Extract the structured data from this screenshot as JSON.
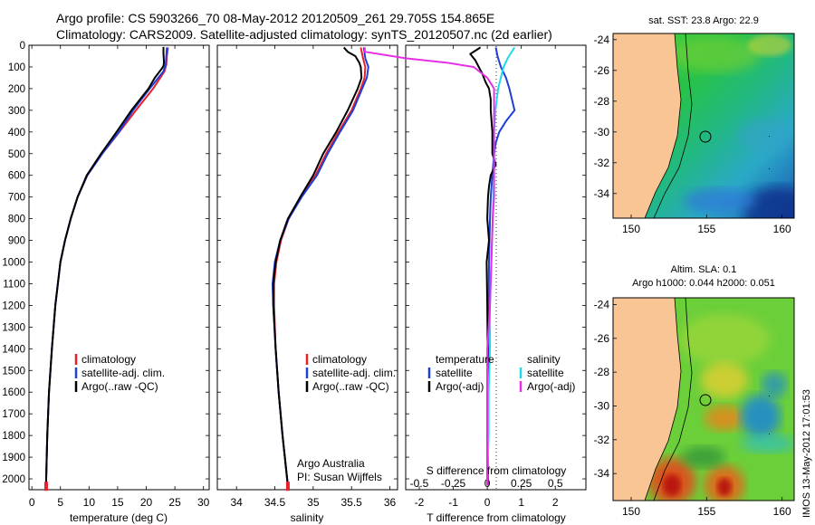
{
  "title_line1": "Argo profile: CS 5903266_70 08-May-2012 20120509_261 29.705S 154.865E",
  "title_line2": "Climatology: CARS2009. Satellite-adjusted climatology: synTS_20120507.nc (2d earlier)",
  "timestamp": "IMOS 13-May-2012 17:01:53",
  "chart_data": [
    {
      "type": "line",
      "xlabel": "temperature (deg C)",
      "xlim": [
        -0.5,
        31
      ],
      "xticks": [
        0,
        5,
        10,
        15,
        20,
        25,
        30
      ],
      "ylim": [
        2050,
        0
      ],
      "yticks": [
        0,
        100,
        200,
        300,
        400,
        500,
        600,
        700,
        800,
        900,
        1000,
        1100,
        1200,
        1300,
        1400,
        1500,
        1600,
        1700,
        1800,
        1900,
        2000
      ],
      "legend": [
        "climatology",
        "satellite-adj. clim.",
        "Argo(..raw -QC)"
      ],
      "colors": {
        "climatology": "#e8202a",
        "satellite": "#1e3fd8",
        "argo": "#000000"
      },
      "series": [
        {
          "name": "climatology",
          "color": "#e8202a",
          "y": [
            10,
            50,
            90,
            120,
            200,
            300,
            400,
            500,
            600,
            700,
            800,
            900,
            1000,
            1200,
            1400,
            1600,
            1800,
            2000,
            2030
          ],
          "x": [
            23.8,
            23.6,
            23.5,
            23.2,
            21.2,
            18.2,
            15.3,
            12.3,
            9.7,
            8.0,
            6.8,
            5.8,
            5.0,
            4.1,
            3.5,
            3.0,
            2.7,
            2.5,
            2.5
          ]
        },
        {
          "name": "satellite-adj. clim.",
          "color": "#1e3fd8",
          "y": [
            10,
            50,
            90,
            120,
            200,
            300,
            400,
            500,
            600,
            700,
            800,
            900,
            1000,
            1200,
            1400,
            1600,
            1800,
            2000,
            2030
          ],
          "x": [
            23.6,
            23.5,
            23.4,
            23.0,
            20.6,
            17.7,
            15.2,
            12.3,
            9.7,
            8.0,
            6.8,
            5.8,
            5.0,
            4.1,
            3.5,
            3.0,
            2.7,
            2.5,
            2.5
          ]
        },
        {
          "name": "Argo(..raw -QC)",
          "color": "#000000",
          "y": [
            8,
            40,
            80,
            95,
            105,
            150,
            200,
            300,
            400,
            500,
            600,
            700,
            800,
            900,
            1000,
            1200,
            1400,
            1600,
            1800,
            2000,
            2030
          ],
          "x": [
            23.0,
            23.0,
            23.1,
            23.0,
            22.8,
            21.5,
            20.4,
            17.4,
            14.8,
            12.1,
            9.6,
            8.0,
            6.8,
            5.8,
            5.0,
            4.1,
            3.5,
            3.0,
            2.7,
            2.5,
            2.5
          ]
        }
      ],
      "marker_bottom": {
        "x": 2.5,
        "y": 2030,
        "color": "#e8202a"
      }
    },
    {
      "type": "line",
      "xlabel": "salinity",
      "xlim": [
        33.75,
        36.1
      ],
      "xticks": [
        34,
        34.5,
        35,
        35.5,
        36
      ],
      "ylim": [
        2050,
        0
      ],
      "legend": [
        "climatology",
        "satellite-adj. clim.",
        "Argo(..raw -QC)"
      ],
      "annotation": [
        "Argo Australia",
        "PI: Susan Wijffels"
      ],
      "series": [
        {
          "name": "climatology",
          "color": "#e8202a",
          "y": [
            10,
            60,
            100,
            150,
            200,
            300,
            400,
            500,
            600,
            700,
            800,
            900,
            1000,
            1100,
            1200,
            1400,
            1600,
            1800,
            2000,
            2030
          ],
          "x": [
            35.62,
            35.65,
            35.68,
            35.67,
            35.62,
            35.5,
            35.33,
            35.17,
            35.03,
            34.84,
            34.68,
            34.58,
            34.52,
            34.49,
            34.49,
            34.51,
            34.55,
            34.6,
            34.66,
            34.67
          ]
        },
        {
          "name": "satellite-adj. clim.",
          "color": "#1e3fd8",
          "y": [
            10,
            60,
            100,
            150,
            200,
            300,
            400,
            500,
            600,
            700,
            800,
            900,
            1000,
            1100,
            1200,
            1400,
            1600,
            1800,
            2000,
            2030
          ],
          "x": [
            35.66,
            35.68,
            35.72,
            35.7,
            35.64,
            35.52,
            35.35,
            35.19,
            35.05,
            34.85,
            34.68,
            34.57,
            34.5,
            34.47,
            34.48,
            34.51,
            34.55,
            34.6,
            34.66,
            34.67
          ]
        },
        {
          "name": "Argo(..raw -QC)",
          "color": "#000000",
          "y": [
            10,
            30,
            50,
            80,
            100,
            150,
            200,
            300,
            400,
            500,
            600,
            700,
            800,
            900,
            1000,
            1100,
            1200,
            1400,
            1600,
            1800,
            2000,
            2030
          ],
          "x": [
            35.4,
            35.45,
            35.55,
            35.6,
            35.62,
            35.63,
            35.58,
            35.45,
            35.3,
            35.13,
            35.0,
            34.83,
            34.67,
            34.57,
            34.51,
            34.48,
            34.48,
            34.51,
            34.55,
            34.6,
            34.66,
            34.67
          ]
        }
      ],
      "marker_bottom": {
        "x": 34.67,
        "y": 2030,
        "color": "#e8202a"
      }
    },
    {
      "type": "line",
      "xlabel": "T difference from climatology",
      "xlabel2": "S difference from climatology",
      "xlim": [
        -2.4,
        2.9
      ],
      "xticks": [
        -2,
        -1,
        0,
        1,
        2
      ],
      "xticks2": [
        "-0.5",
        "-0.25",
        "0",
        "0.25",
        "0.5"
      ],
      "ylim": [
        2050,
        0
      ],
      "legend_temperature": {
        "header": "temperature",
        "items": [
          "satellite",
          "Argo(-adj)"
        ]
      },
      "legend_salinity": {
        "header": "salinity",
        "items": [
          "satellite",
          "Argo(-adj)"
        ]
      },
      "series": [
        {
          "name": "temperature satellite",
          "color": "#1e3fd8",
          "y": [
            10,
            50,
            100,
            150,
            200,
            300,
            350,
            400,
            450,
            500,
            600,
            700,
            800,
            1000,
            1200,
            1400,
            1600,
            1800,
            2000,
            2030
          ],
          "x": [
            0.25,
            0.3,
            0.4,
            0.55,
            0.65,
            0.8,
            0.55,
            0.35,
            0.25,
            0.2,
            0.15,
            0.1,
            0.08,
            0.05,
            0.04,
            0.03,
            0.02,
            0.02,
            0.02,
            0.02
          ]
        },
        {
          "name": "temperature Argo(-adj)",
          "color": "#000000",
          "y": [
            10,
            40,
            70,
            100,
            130,
            170,
            200,
            250,
            300,
            400,
            500,
            550,
            600,
            650,
            700,
            800,
            900,
            1000,
            1200,
            1400,
            1600,
            1800,
            2000,
            2030
          ],
          "x": [
            -0.2,
            -0.5,
            -0.35,
            -0.25,
            -0.15,
            -0.05,
            0.05,
            0.1,
            0.1,
            0.15,
            0.15,
            0.25,
            0.1,
            0.05,
            0.02,
            0.0,
            0.05,
            -0.02,
            0.0,
            0.01,
            0.0,
            0.0,
            0.0,
            0.0
          ]
        },
        {
          "name": "salinity satellite",
          "color": "#22d8e8",
          "y": [
            10,
            60,
            100,
            150,
            200,
            300,
            400,
            600,
            800,
            1000,
            1200,
            1400,
            1600,
            1800,
            2000,
            2030
          ],
          "x": [
            0.2,
            0.15,
            0.12,
            0.1,
            0.08,
            0.06,
            0.05,
            0.05,
            0.04,
            0.03,
            0.02,
            0.02,
            0.01,
            0.01,
            0.0,
            0.0
          ]
        },
        {
          "name": "salinity Argo(-adj)",
          "color": "#e62ee6",
          "y": [
            10,
            30,
            60,
            80,
            100,
            150,
            200,
            300,
            400,
            500,
            600,
            700,
            800,
            1000,
            1200,
            1400,
            1600,
            1800,
            2000,
            2030
          ],
          "x": [
            -0.9,
            -0.9,
            -0.6,
            -0.3,
            -0.1,
            0.0,
            0.05,
            0.05,
            0.05,
            0.05,
            0.05,
            0.05,
            0.04,
            0.03,
            0.02,
            0.0,
            0.0,
            0.0,
            0.0,
            0.0
          ]
        }
      ]
    }
  ],
  "maps": [
    {
      "title": "sat. SST: 23.8 Argo: 22.9",
      "xticks": [
        "150",
        "155",
        "160"
      ],
      "yticks": [
        "-24",
        "-26",
        "-28",
        "-30",
        "-32",
        "-34"
      ],
      "lon_range": [
        148.8,
        160.8
      ],
      "lat_range": [
        -35.6,
        -23.6
      ],
      "profile": {
        "lon": 154.865,
        "lat": -29.705
      }
    },
    {
      "title_line1": "Altim. SLA: 0.1",
      "title_line2": "Argo h1000: 0.044 h2000: 0.051",
      "xticks": [
        "150",
        "155",
        "160"
      ],
      "yticks": [
        "-24",
        "-26",
        "-28",
        "-30",
        "-32",
        "-34"
      ],
      "lon_range": [
        148.8,
        160.8
      ],
      "lat_range": [
        -35.6,
        -23.6
      ],
      "profile": {
        "lon": 154.865,
        "lat": -29.705
      }
    }
  ]
}
